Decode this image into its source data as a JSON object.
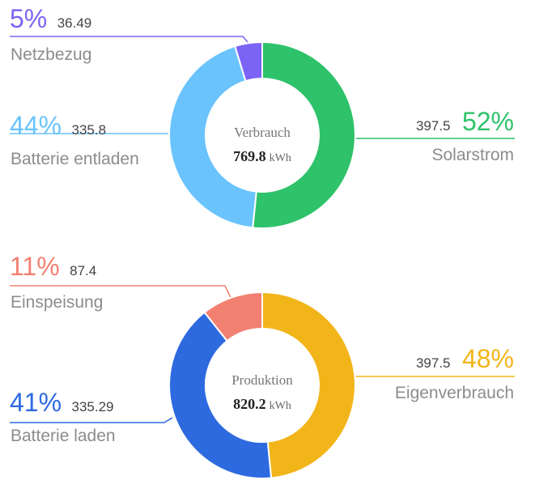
{
  "chart_data": [
    {
      "type": "pie",
      "center_title": "Verbrauch",
      "total": "769.8",
      "unit": "kWh",
      "slices": [
        {
          "name": "Solarstrom",
          "percent": "52%",
          "value": 397.5,
          "color": "#2ec26a"
        },
        {
          "name": "Batterie entladen",
          "percent": "44%",
          "value": 335.8,
          "color": "#6ac3fc"
        },
        {
          "name": "Netzbezug",
          "percent": "5%",
          "value": 36.49,
          "color": "#7b63f5"
        }
      ]
    },
    {
      "type": "pie",
      "center_title": "Produktion",
      "total": "820.2",
      "unit": "kWh",
      "slices": [
        {
          "name": "Eigenverbrauch",
          "percent": "48%",
          "value": 397.5,
          "color": "#f2b519"
        },
        {
          "name": "Batterie laden",
          "percent": "41%",
          "value": 335.29,
          "color": "#2d6ae0"
        },
        {
          "name": "Einspeisung",
          "percent": "11%",
          "value": 87.4,
          "color": "#f28071"
        }
      ]
    }
  ]
}
